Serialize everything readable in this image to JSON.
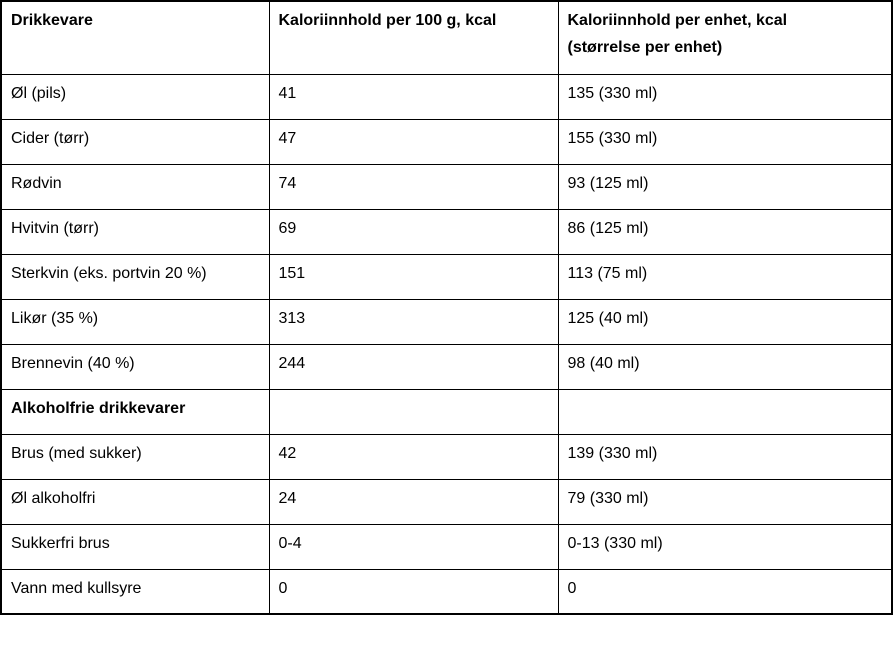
{
  "table": {
    "columns": [
      "Drikkevare",
      "Kaloriinnhold per 100 g, kcal",
      "Kaloriinnhold per enhet, kcal\n(størrelse per enhet)"
    ],
    "rows": [
      {
        "name": "Øl (pils)",
        "per_100g": "41",
        "per_unit": "135 (330 ml)",
        "section": false
      },
      {
        "name": "Cider (tørr)",
        "per_100g": "47",
        "per_unit": "155 (330 ml)",
        "section": false
      },
      {
        "name": "Rødvin",
        "per_100g": "74",
        "per_unit": "93 (125 ml)",
        "section": false
      },
      {
        "name": "Hvitvin (tørr)",
        "per_100g": "69",
        "per_unit": "86 (125 ml)",
        "section": false
      },
      {
        "name": "Sterkvin (eks. portvin 20 %)",
        "per_100g": "151",
        "per_unit": "113 (75 ml)",
        "section": false
      },
      {
        "name": "Likør (35 %)",
        "per_100g": "313",
        "per_unit": "125 (40 ml)",
        "section": false
      },
      {
        "name": "Brennevin (40 %)",
        "per_100g": "244",
        "per_unit": "98 (40 ml)",
        "section": false
      },
      {
        "name": "Alkoholfrie drikkevarer",
        "per_100g": "",
        "per_unit": "",
        "section": true
      },
      {
        "name": "Brus (med sukker)",
        "per_100g": "42",
        "per_unit": "139 (330 ml)",
        "section": false
      },
      {
        "name": "Øl alkoholfri",
        "per_100g": "24",
        "per_unit": "79 (330 ml)",
        "section": false
      },
      {
        "name": "Sukkerfri brus",
        "per_100g": "0-4",
        "per_unit": "0-13 (330 ml)",
        "section": false
      },
      {
        "name": "Vann med kullsyre",
        "per_100g": "0",
        "per_unit": "0",
        "section": false
      }
    ],
    "colors": {
      "border": "#000000",
      "text": "#000000",
      "background": "#ffffff"
    }
  }
}
